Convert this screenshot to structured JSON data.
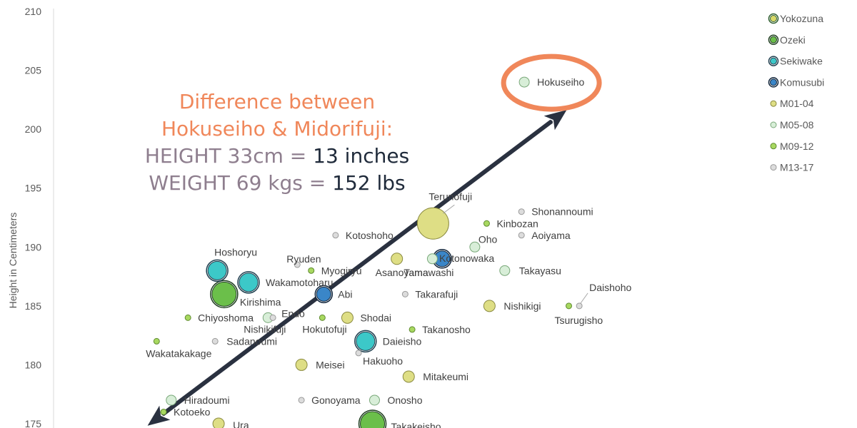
{
  "chart_data": {
    "type": "scatter",
    "title": "",
    "xlabel": "",
    "ylabel": "Height in Centimeters",
    "ylim": [
      175,
      210
    ],
    "xlim": [
      0,
      100
    ],
    "y_ticks": [
      "175",
      "180",
      "185",
      "190",
      "195",
      "200",
      "205",
      "210"
    ],
    "grid": false,
    "legend_position": "top-right",
    "legend": [
      {
        "name": "Yokozuna",
        "color": "#d9d96a",
        "ring": "#2e5e2e"
      },
      {
        "name": "Ozeki",
        "color": "#6bbf4a",
        "ring": "#1f3f1f"
      },
      {
        "name": "Sekiwake",
        "color": "#3cc8c8",
        "ring": "#1f3f4f"
      },
      {
        "name": "Komusubi",
        "color": "#3a86c8",
        "ring": "#10243a"
      },
      {
        "name": "M01-04",
        "color": "#dede85",
        "ring": "#8a8a40"
      },
      {
        "name": "M05-08",
        "color": "#d8eed8",
        "ring": "#7aa87a"
      },
      {
        "name": "M09-12",
        "color": "#a8d860",
        "ring": "#5e8a30"
      },
      {
        "name": "M13-17",
        "color": "#dcdcdc",
        "ring": "#9a9a9a"
      }
    ],
    "annotation": {
      "line1": "Difference between",
      "line2": "Hokuseiho & Midorifuji:",
      "line3a": "HEIGHT 33cm = ",
      "line3b": "13 inches",
      "line4a": "WEIGHT 69 kgs = ",
      "line4b": "152 lbs",
      "color_title": "#f0875a",
      "color_metric": "#8e7e8e",
      "color_value": "#1f2a3a",
      "highlight_color": "#f0875a"
    },
    "points": [
      {
        "name": "Hokuseiho",
        "x": 67.6,
        "y": 204,
        "rank": "M05-08",
        "r": 7
      },
      {
        "name": "Terunofuji",
        "x": 54.5,
        "y": 192,
        "rank": "M01-04",
        "r": 22
      },
      {
        "name": "Shonannoumi",
        "x": 67.2,
        "y": 193,
        "rank": "M13-17",
        "r": 4
      },
      {
        "name": "Kinbozan",
        "x": 62.2,
        "y": 192,
        "rank": "M09-12",
        "r": 4
      },
      {
        "name": "Aoiyama",
        "x": 67.2,
        "y": 191,
        "rank": "M13-17",
        "r": 4
      },
      {
        "name": "Kotoshoho",
        "x": 40.5,
        "y": 191,
        "rank": "M13-17",
        "r": 4
      },
      {
        "name": "Oho",
        "x": 60.5,
        "y": 190,
        "rank": "M05-08",
        "r": 7
      },
      {
        "name": "Kotonowaka",
        "x": 55.8,
        "y": 189,
        "rank": "Komusubi",
        "r": 11
      },
      {
        "name": "Tamawashi",
        "x": 54.4,
        "y": 189,
        "rank": "M05-08",
        "r": 7
      },
      {
        "name": "Asanoyama",
        "x": 49.3,
        "y": 189,
        "rank": "M01-04",
        "r": 8
      },
      {
        "name": "Ryuden",
        "x": 35.0,
        "y": 188.5,
        "rank": "M13-17",
        "r": 4
      },
      {
        "name": "Hoshoryu",
        "x": 23.5,
        "y": 188,
        "rank": "Sekiwake",
        "r": 13
      },
      {
        "name": "Myogiryu",
        "x": 37.0,
        "y": 188,
        "rank": "M09-12",
        "r": 4
      },
      {
        "name": "Takayasu",
        "x": 64.8,
        "y": 188,
        "rank": "M05-08",
        "r": 7
      },
      {
        "name": "Wakamotoharu",
        "x": 28.0,
        "y": 187,
        "rank": "Sekiwake",
        "r": 13
      },
      {
        "name": "Kirishima",
        "x": 24.5,
        "y": 186,
        "rank": "Ozeki",
        "r": 17
      },
      {
        "name": "Abi",
        "x": 38.8,
        "y": 186,
        "rank": "Komusubi",
        "r": 10
      },
      {
        "name": "Takarafuji",
        "x": 50.5,
        "y": 186,
        "rank": "M13-17",
        "r": 4
      },
      {
        "name": "Nishikigi",
        "x": 62.6,
        "y": 185,
        "rank": "M01-04",
        "r": 8
      },
      {
        "name": "Daishoho",
        "x": 75.5,
        "y": 185,
        "rank": "M13-17",
        "r": 4
      },
      {
        "name": "Tsurugisho",
        "x": 74.0,
        "y": 185,
        "rank": "M09-12",
        "r": 4
      },
      {
        "name": "Chiyoshoma",
        "x": 19.3,
        "y": 184,
        "rank": "M09-12",
        "r": 4
      },
      {
        "name": "Endo",
        "x": 31.5,
        "y": 184,
        "rank": "M13-17",
        "r": 4
      },
      {
        "name": "Nishikifuji",
        "x": 30.8,
        "y": 184,
        "rank": "M05-08",
        "r": 7
      },
      {
        "name": "Hokutofuji",
        "x": 38.6,
        "y": 184,
        "rank": "M09-12",
        "r": 4
      },
      {
        "name": "Shodai",
        "x": 42.2,
        "y": 184,
        "rank": "M01-04",
        "r": 8
      },
      {
        "name": "Takanosho",
        "x": 51.5,
        "y": 183,
        "rank": "M09-12",
        "r": 4
      },
      {
        "name": "Wakatakakage",
        "x": 14.8,
        "y": 182,
        "rank": "M09-12",
        "r": 4
      },
      {
        "name": "Sadanoumi",
        "x": 23.2,
        "y": 182,
        "rank": "M13-17",
        "r": 4
      },
      {
        "name": "Daieisho",
        "x": 44.8,
        "y": 182,
        "rank": "Sekiwake",
        "r": 13
      },
      {
        "name": "Hakuoho",
        "x": 43.8,
        "y": 181,
        "rank": "M13-17",
        "r": 4
      },
      {
        "name": "Meisei",
        "x": 35.6,
        "y": 180,
        "rank": "M01-04",
        "r": 8
      },
      {
        "name": "Mitakeumi",
        "x": 51.0,
        "y": 179,
        "rank": "M01-04",
        "r": 8
      },
      {
        "name": "Hiradoumi",
        "x": 16.9,
        "y": 177,
        "rank": "M05-08",
        "r": 7
      },
      {
        "name": "Gonoyama",
        "x": 35.6,
        "y": 177,
        "rank": "M13-17",
        "r": 4
      },
      {
        "name": "Onosho",
        "x": 46.1,
        "y": 177,
        "rank": "M05-08",
        "r": 7
      },
      {
        "name": "Kotoeko",
        "x": 15.8,
        "y": 176,
        "rank": "M09-12",
        "r": 4
      },
      {
        "name": "Ura",
        "x": 23.7,
        "y": 175,
        "rank": "M01-04",
        "r": 8
      },
      {
        "name": "Takakeisho",
        "x": 45.8,
        "y": 175,
        "rank": "Ozeki",
        "r": 17
      }
    ]
  }
}
